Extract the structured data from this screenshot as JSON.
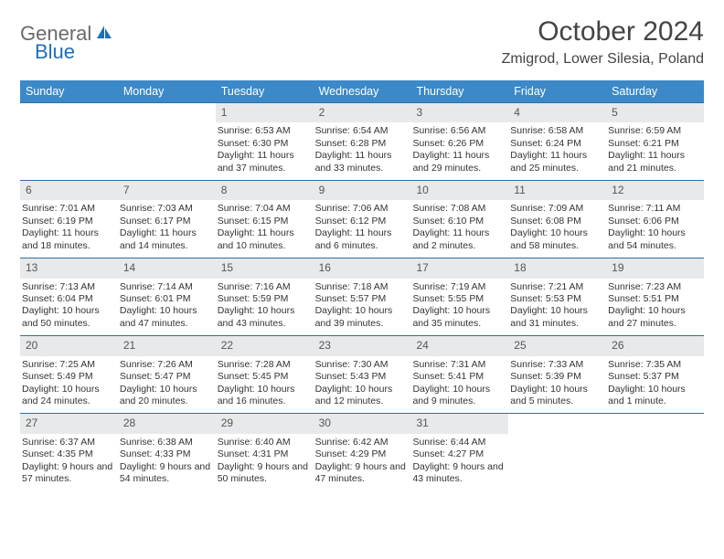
{
  "logo": {
    "text1": "General",
    "text2": "Blue"
  },
  "title": "October 2024",
  "location": "Zmigrod, Lower Silesia, Poland",
  "colors": {
    "header_bg": "#3b89c9",
    "header_text": "#ffffff",
    "week_border": "#2f6da3",
    "daynum_bg": "#e8e9ea",
    "logo_blue": "#1d6fb8"
  },
  "day_names": [
    "Sunday",
    "Monday",
    "Tuesday",
    "Wednesday",
    "Thursday",
    "Friday",
    "Saturday"
  ],
  "weeks": [
    [
      {
        "n": "",
        "sr": "",
        "ss": "",
        "dl": ""
      },
      {
        "n": "",
        "sr": "",
        "ss": "",
        "dl": ""
      },
      {
        "n": "1",
        "sr": "Sunrise: 6:53 AM",
        "ss": "Sunset: 6:30 PM",
        "dl": "Daylight: 11 hours and 37 minutes."
      },
      {
        "n": "2",
        "sr": "Sunrise: 6:54 AM",
        "ss": "Sunset: 6:28 PM",
        "dl": "Daylight: 11 hours and 33 minutes."
      },
      {
        "n": "3",
        "sr": "Sunrise: 6:56 AM",
        "ss": "Sunset: 6:26 PM",
        "dl": "Daylight: 11 hours and 29 minutes."
      },
      {
        "n": "4",
        "sr": "Sunrise: 6:58 AM",
        "ss": "Sunset: 6:24 PM",
        "dl": "Daylight: 11 hours and 25 minutes."
      },
      {
        "n": "5",
        "sr": "Sunrise: 6:59 AM",
        "ss": "Sunset: 6:21 PM",
        "dl": "Daylight: 11 hours and 21 minutes."
      }
    ],
    [
      {
        "n": "6",
        "sr": "Sunrise: 7:01 AM",
        "ss": "Sunset: 6:19 PM",
        "dl": "Daylight: 11 hours and 18 minutes."
      },
      {
        "n": "7",
        "sr": "Sunrise: 7:03 AM",
        "ss": "Sunset: 6:17 PM",
        "dl": "Daylight: 11 hours and 14 minutes."
      },
      {
        "n": "8",
        "sr": "Sunrise: 7:04 AM",
        "ss": "Sunset: 6:15 PM",
        "dl": "Daylight: 11 hours and 10 minutes."
      },
      {
        "n": "9",
        "sr": "Sunrise: 7:06 AM",
        "ss": "Sunset: 6:12 PM",
        "dl": "Daylight: 11 hours and 6 minutes."
      },
      {
        "n": "10",
        "sr": "Sunrise: 7:08 AM",
        "ss": "Sunset: 6:10 PM",
        "dl": "Daylight: 11 hours and 2 minutes."
      },
      {
        "n": "11",
        "sr": "Sunrise: 7:09 AM",
        "ss": "Sunset: 6:08 PM",
        "dl": "Daylight: 10 hours and 58 minutes."
      },
      {
        "n": "12",
        "sr": "Sunrise: 7:11 AM",
        "ss": "Sunset: 6:06 PM",
        "dl": "Daylight: 10 hours and 54 minutes."
      }
    ],
    [
      {
        "n": "13",
        "sr": "Sunrise: 7:13 AM",
        "ss": "Sunset: 6:04 PM",
        "dl": "Daylight: 10 hours and 50 minutes."
      },
      {
        "n": "14",
        "sr": "Sunrise: 7:14 AM",
        "ss": "Sunset: 6:01 PM",
        "dl": "Daylight: 10 hours and 47 minutes."
      },
      {
        "n": "15",
        "sr": "Sunrise: 7:16 AM",
        "ss": "Sunset: 5:59 PM",
        "dl": "Daylight: 10 hours and 43 minutes."
      },
      {
        "n": "16",
        "sr": "Sunrise: 7:18 AM",
        "ss": "Sunset: 5:57 PM",
        "dl": "Daylight: 10 hours and 39 minutes."
      },
      {
        "n": "17",
        "sr": "Sunrise: 7:19 AM",
        "ss": "Sunset: 5:55 PM",
        "dl": "Daylight: 10 hours and 35 minutes."
      },
      {
        "n": "18",
        "sr": "Sunrise: 7:21 AM",
        "ss": "Sunset: 5:53 PM",
        "dl": "Daylight: 10 hours and 31 minutes."
      },
      {
        "n": "19",
        "sr": "Sunrise: 7:23 AM",
        "ss": "Sunset: 5:51 PM",
        "dl": "Daylight: 10 hours and 27 minutes."
      }
    ],
    [
      {
        "n": "20",
        "sr": "Sunrise: 7:25 AM",
        "ss": "Sunset: 5:49 PM",
        "dl": "Daylight: 10 hours and 24 minutes."
      },
      {
        "n": "21",
        "sr": "Sunrise: 7:26 AM",
        "ss": "Sunset: 5:47 PM",
        "dl": "Daylight: 10 hours and 20 minutes."
      },
      {
        "n": "22",
        "sr": "Sunrise: 7:28 AM",
        "ss": "Sunset: 5:45 PM",
        "dl": "Daylight: 10 hours and 16 minutes."
      },
      {
        "n": "23",
        "sr": "Sunrise: 7:30 AM",
        "ss": "Sunset: 5:43 PM",
        "dl": "Daylight: 10 hours and 12 minutes."
      },
      {
        "n": "24",
        "sr": "Sunrise: 7:31 AM",
        "ss": "Sunset: 5:41 PM",
        "dl": "Daylight: 10 hours and 9 minutes."
      },
      {
        "n": "25",
        "sr": "Sunrise: 7:33 AM",
        "ss": "Sunset: 5:39 PM",
        "dl": "Daylight: 10 hours and 5 minutes."
      },
      {
        "n": "26",
        "sr": "Sunrise: 7:35 AM",
        "ss": "Sunset: 5:37 PM",
        "dl": "Daylight: 10 hours and 1 minute."
      }
    ],
    [
      {
        "n": "27",
        "sr": "Sunrise: 6:37 AM",
        "ss": "Sunset: 4:35 PM",
        "dl": "Daylight: 9 hours and 57 minutes."
      },
      {
        "n": "28",
        "sr": "Sunrise: 6:38 AM",
        "ss": "Sunset: 4:33 PM",
        "dl": "Daylight: 9 hours and 54 minutes."
      },
      {
        "n": "29",
        "sr": "Sunrise: 6:40 AM",
        "ss": "Sunset: 4:31 PM",
        "dl": "Daylight: 9 hours and 50 minutes."
      },
      {
        "n": "30",
        "sr": "Sunrise: 6:42 AM",
        "ss": "Sunset: 4:29 PM",
        "dl": "Daylight: 9 hours and 47 minutes."
      },
      {
        "n": "31",
        "sr": "Sunrise: 6:44 AM",
        "ss": "Sunset: 4:27 PM",
        "dl": "Daylight: 9 hours and 43 minutes."
      },
      {
        "n": "",
        "sr": "",
        "ss": "",
        "dl": ""
      },
      {
        "n": "",
        "sr": "",
        "ss": "",
        "dl": ""
      }
    ]
  ]
}
